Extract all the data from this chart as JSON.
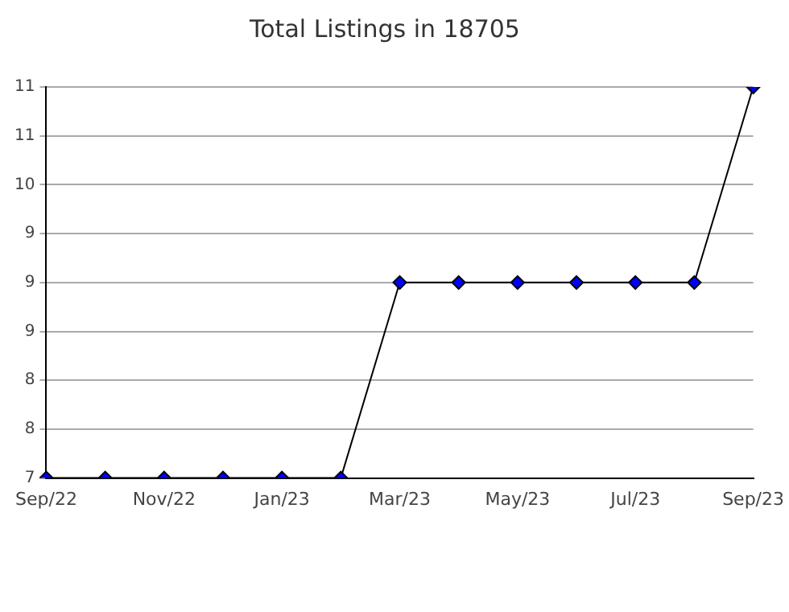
{
  "chart_data": {
    "type": "line",
    "title": "Total Listings in 18705",
    "categories": [
      "Sep/22",
      null,
      "Nov/22",
      null,
      "Jan/23",
      null,
      "Mar/23",
      null,
      "May/23",
      null,
      "Jul/23",
      null,
      "Sep/23"
    ],
    "series": [
      {
        "color": "#0000ff",
        "values": [
          7,
          7,
          7,
          7,
          7,
          7,
          9,
          9,
          9,
          9,
          9,
          9,
          11
        ]
      }
    ],
    "ylim": [
      7,
      11
    ],
    "yticks": [
      7,
      {
        "value": 7.5,
        "label": "8"
      },
      8,
      {
        "value": 8.5,
        "label": "9"
      },
      9,
      {
        "value": 9.5,
        "label": "9"
      },
      10,
      {
        "value": 10.5,
        "label": "11"
      },
      11
    ],
    "grid": "y",
    "legend": false,
    "marker": "diamond",
    "line_style": "solid"
  }
}
